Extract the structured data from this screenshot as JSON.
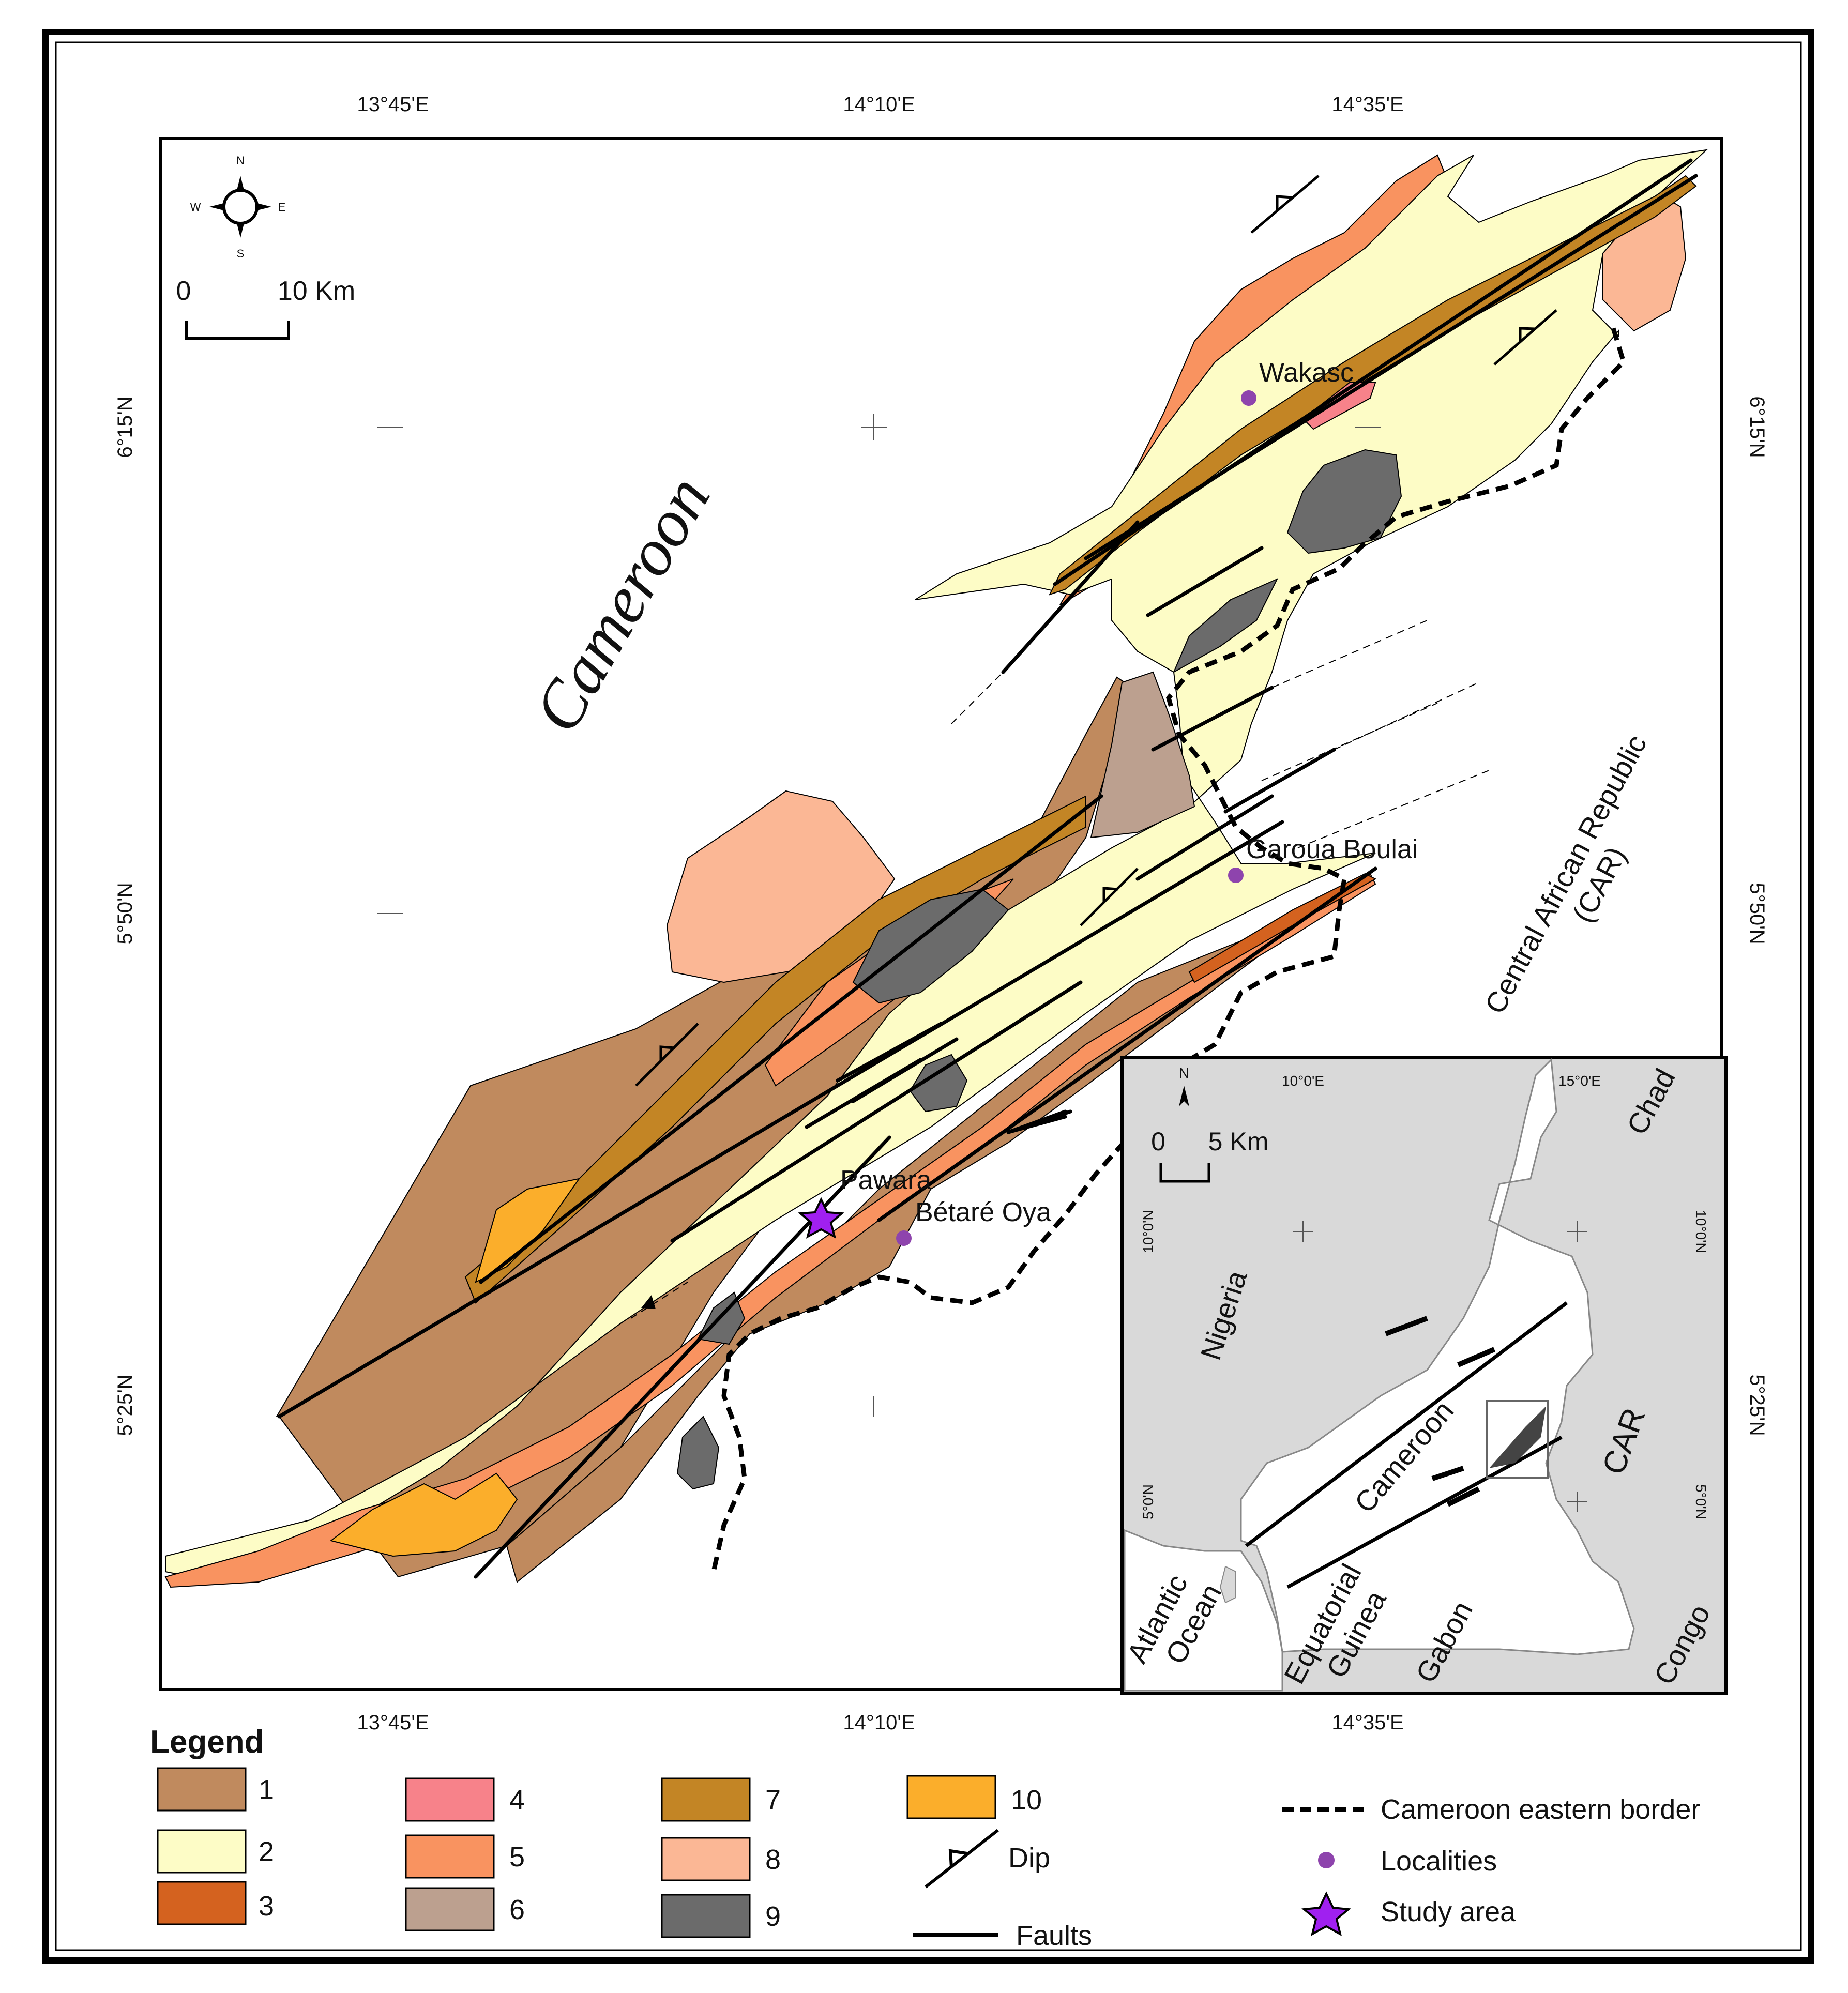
{
  "map": {
    "country_label": "Cameroon",
    "car_label_line1": "Central African Republic",
    "car_label_line2": "(CAR)",
    "top_lon_labels": [
      "13°45'E",
      "14°10'E",
      "14°35'E"
    ],
    "bottom_lon_labels": [
      "13°45'E",
      "14°10'E",
      "14°35'E"
    ],
    "left_lat_labels": [
      "6°15'N",
      "5°50'N",
      "5°25'N"
    ],
    "right_lat_labels": [
      "6°15'N",
      "5°50'N",
      "5°25'N"
    ],
    "compass": {
      "n": "N",
      "s": "S",
      "e": "E",
      "w": "W"
    },
    "scale": {
      "zero": "0",
      "label": "10 Km"
    },
    "localities": [
      {
        "name": "Wakasc"
      },
      {
        "name": "Garoua Boulai"
      },
      {
        "name": "Pawara"
      },
      {
        "name": "Bétaré Oya"
      }
    ]
  },
  "inset": {
    "lon_labels": [
      "10°0'E",
      "15°0'E"
    ],
    "lat_labels_left": [
      "10°0'N",
      "5°0'N"
    ],
    "lat_labels_right": [
      "10°0'N",
      "5°0'N"
    ],
    "north": "N",
    "scale": {
      "zero": "0",
      "label": "5 Km"
    },
    "countries": [
      "Nigeria",
      "Chad",
      "Cameroon",
      "CAR",
      "Gabon",
      "Congo"
    ],
    "atlantic": [
      "Atlantic",
      "Ocean"
    ],
    "eq_guinea": [
      "Equatorial",
      "Guinea"
    ]
  },
  "legend": {
    "title": "Legend",
    "units": [
      {
        "label": "1",
        "color": "#c08a5e"
      },
      {
        "label": "2",
        "color": "#fdfcc6"
      },
      {
        "label": "3",
        "color": "#d4621f"
      },
      {
        "label": "4",
        "color": "#f7828a"
      },
      {
        "label": "5",
        "color": "#f99360"
      },
      {
        "label": "6",
        "color": "#bca08f"
      },
      {
        "label": "7",
        "color": "#c38525"
      },
      {
        "label": "8",
        "color": "#fbb795"
      },
      {
        "label": "9",
        "color": "#6b6b6b"
      },
      {
        "label": "10",
        "color": "#fbae2b"
      }
    ],
    "symbols": {
      "dip": "Dip",
      "faults": "Faults",
      "border": "Cameroon eastern border",
      "localities": "Localities",
      "study_area": "Study area"
    },
    "locality_color": "#8e44ad",
    "star_color": "#a020f0"
  }
}
